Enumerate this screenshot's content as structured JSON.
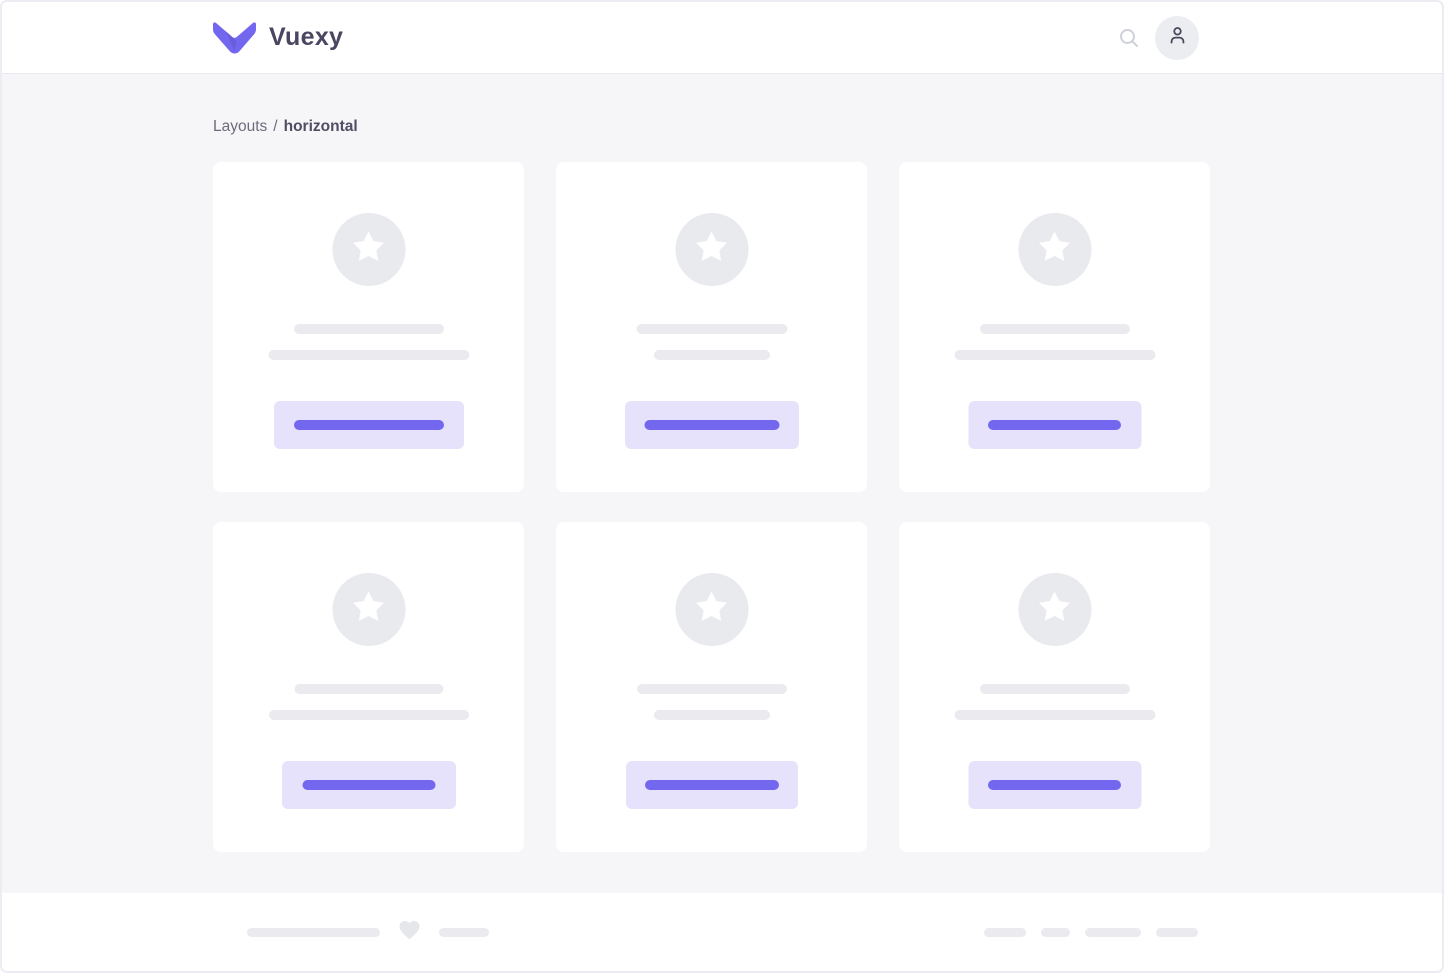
{
  "header": {
    "brand_name": "Vuexy",
    "logo_icon": "vuexy-v-logo-icon",
    "search_icon": "search-icon",
    "user_icon": "user-icon"
  },
  "breadcrumb": {
    "section": "Layouts",
    "separator": "/",
    "current": "horizontal"
  },
  "content": {
    "cards": [
      {
        "star_icon": "star-icon",
        "title_bar_w": 150,
        "subtitle_bar_w": 201,
        "button_w": 190,
        "button_bar_w": 150
      },
      {
        "star_icon": "star-icon",
        "title_bar_w": 151,
        "subtitle_bar_w": 116,
        "button_w": 174,
        "button_bar_w": 135
      },
      {
        "star_icon": "star-icon",
        "title_bar_w": 150,
        "subtitle_bar_w": 201,
        "button_w": 173,
        "button_bar_w": 133
      },
      {
        "star_icon": "star-icon",
        "title_bar_w": 149,
        "subtitle_bar_w": 200,
        "button_w": 174,
        "button_bar_w": 133
      },
      {
        "star_icon": "star-icon",
        "title_bar_w": 150,
        "subtitle_bar_w": 116,
        "button_w": 172,
        "button_bar_w": 134
      },
      {
        "star_icon": "star-icon",
        "title_bar_w": 150,
        "subtitle_bar_w": 201,
        "button_w": 173,
        "button_bar_w": 133
      }
    ]
  },
  "footer": {
    "heart_icon": "heart-icon",
    "copyright_bar_width": 133,
    "small_bar_width": 50,
    "link_bar_widths": [
      42,
      29,
      56,
      42
    ]
  },
  "colors": {
    "primary": "#7367F0",
    "primary-light": "#E6E2FB",
    "placeholder": "#EAEAEF",
    "page-bg": "#F6F6F8",
    "surface": "#FFFFFF",
    "text-dark": "#4A4560",
    "text-muted": "#6E6B7D",
    "icon-muted": "#CED1D9",
    "avatar-bg": "#ECEDF1",
    "icon-dark": "#4B465C"
  }
}
